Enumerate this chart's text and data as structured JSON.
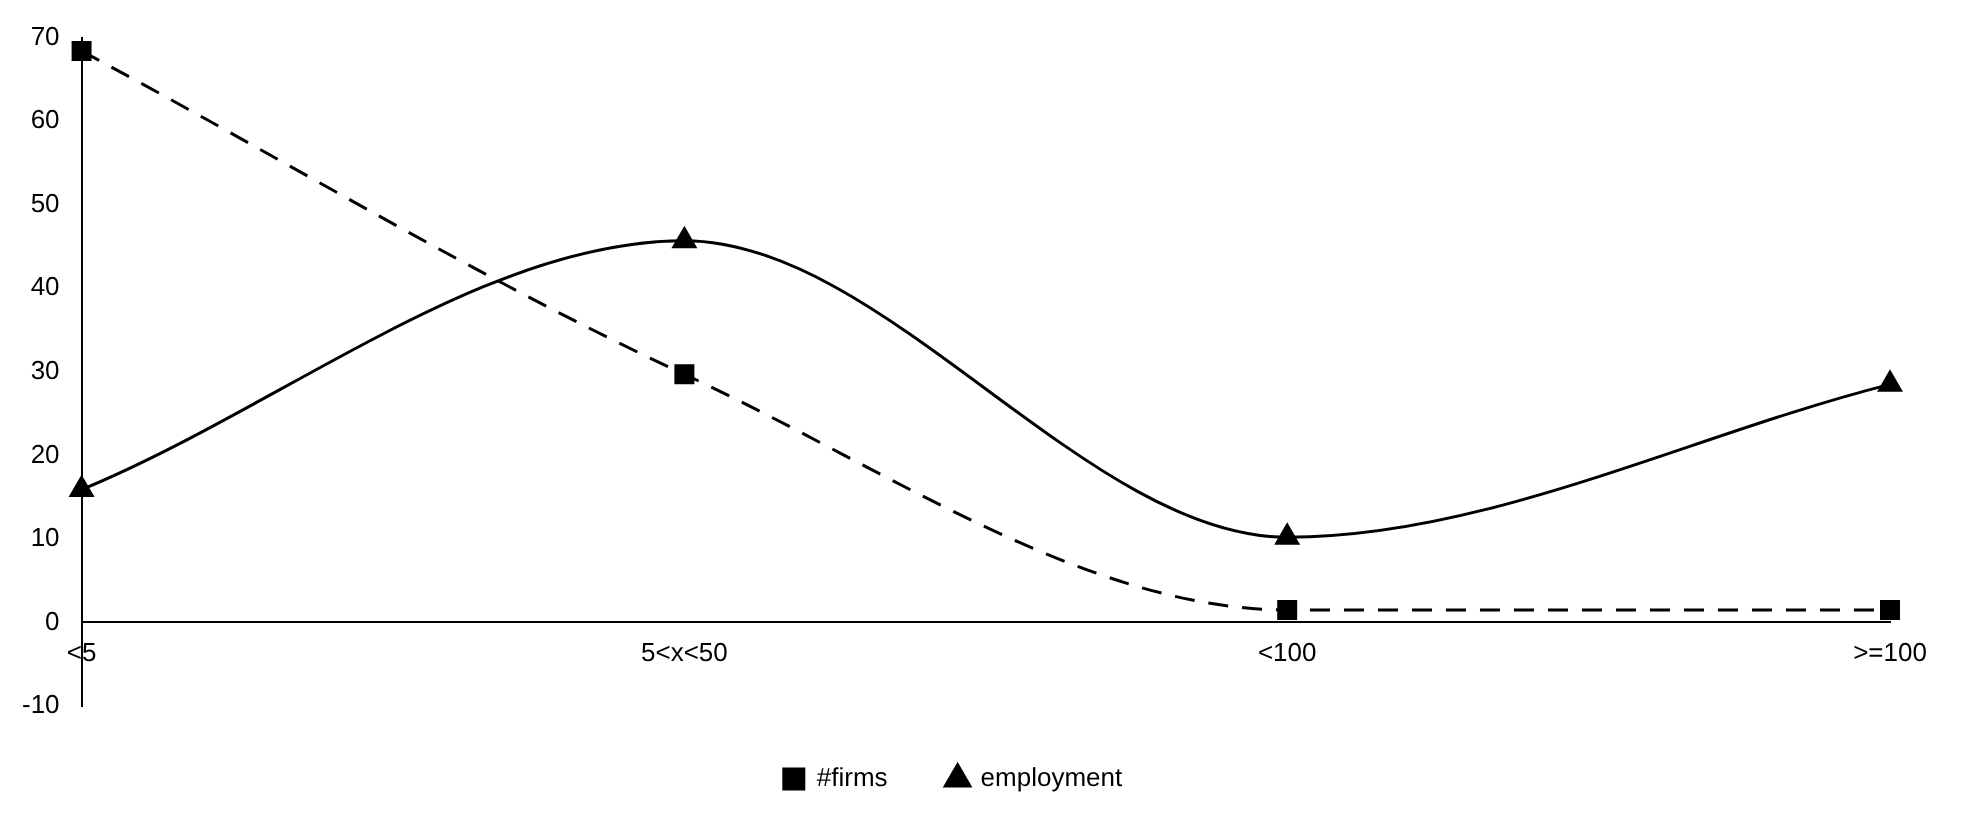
{
  "chart_data": {
    "type": "line",
    "categories": [
      "<5",
      "5<x<50",
      "<100",
      ">=100"
    ],
    "series": [
      {
        "name": "#firms",
        "color": "#000000",
        "values": [
          68.4,
          29.7,
          1.5,
          1.5
        ],
        "marker": "square",
        "line_style": "dashed"
      },
      {
        "name": "employment",
        "color": "#000000",
        "values": [
          15.9,
          45.7,
          10.2,
          28.5
        ],
        "marker": "triangle",
        "line_style": "solid"
      }
    ],
    "ylim": [
      -10,
      70
    ],
    "yticks": [
      -10,
      0,
      10,
      20,
      30,
      40,
      50,
      60,
      70
    ],
    "grid": false,
    "legend": "bottom"
  }
}
